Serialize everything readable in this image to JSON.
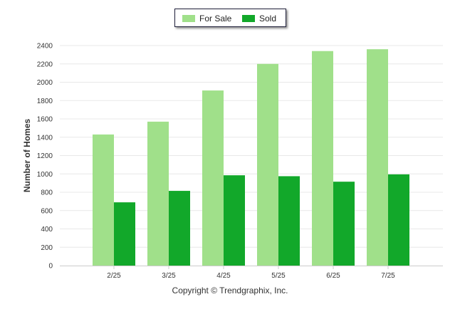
{
  "chart_data": {
    "type": "bar",
    "categories": [
      "2/25",
      "3/25",
      "4/25",
      "5/25",
      "6/25",
      "7/25"
    ],
    "series": [
      {
        "name": "For Sale",
        "values": [
          1430,
          1570,
          1910,
          2200,
          2340,
          2360
        ],
        "color": "#a0e08a"
      },
      {
        "name": "Sold",
        "values": [
          690,
          815,
          985,
          975,
          915,
          995
        ],
        "color": "#12a82a"
      }
    ],
    "ylabel": "Number of Homes",
    "xlabel": "",
    "ylim": [
      0,
      2400
    ],
    "yticks": [
      "0",
      "200",
      "400",
      "600",
      "800",
      "1000",
      "1200",
      "1400",
      "1600",
      "1800",
      "2000",
      "2200",
      "2400"
    ],
    "grid": true,
    "legend_position": "top-center"
  },
  "footer": {
    "copyright": "Copyright © Trendgraphix, Inc."
  }
}
